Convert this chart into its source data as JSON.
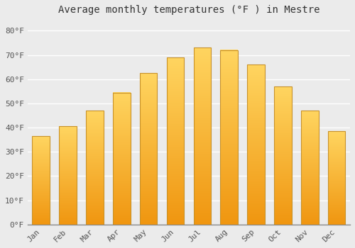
{
  "title": "Average monthly temperatures (°F ) in Mestre",
  "months": [
    "Jan",
    "Feb",
    "Mar",
    "Apr",
    "May",
    "Jun",
    "Jul",
    "Aug",
    "Sep",
    "Oct",
    "Nov",
    "Dec"
  ],
  "values": [
    36.5,
    40.5,
    47.0,
    54.5,
    62.5,
    69.0,
    73.0,
    72.0,
    66.0,
    57.0,
    47.0,
    38.5
  ],
  "bar_color_bottom": "#F5A623",
  "bar_color_top": "#FFD070",
  "bar_edge_color": "#C8922A",
  "ylim": [
    0,
    85
  ],
  "yticks": [
    0,
    10,
    20,
    30,
    40,
    50,
    60,
    70,
    80
  ],
  "ytick_labels": [
    "0°F",
    "10°F",
    "20°F",
    "30°F",
    "40°F",
    "50°F",
    "60°F",
    "70°F",
    "80°F"
  ],
  "background_color": "#ebebeb",
  "plot_bg_color": "#ebebeb",
  "grid_color": "#ffffff",
  "title_fontsize": 10,
  "tick_fontsize": 8,
  "bar_width": 0.65
}
